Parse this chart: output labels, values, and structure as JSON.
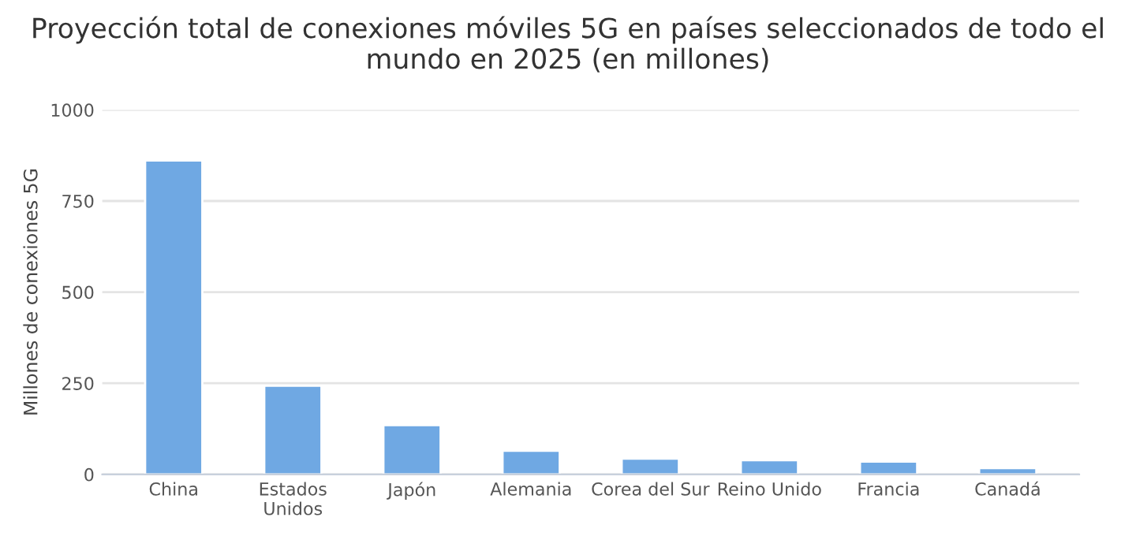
{
  "chart_data": {
    "type": "bar",
    "title": "Proyección total de conexiones móviles 5G en países seleccionados de todo el mundo en 2025 (en millones)",
    "ylabel": "Millones de conexiones 5G",
    "categories": [
      "China",
      "Estados\nUnidos",
      "Japón",
      "Alemania",
      "Corea del Sur",
      "Reino Unido",
      "Francia",
      "Canadá"
    ],
    "values": [
      861,
      243,
      135,
      65,
      43,
      39,
      35,
      17
    ],
    "color": "#6fa8e3",
    "ylim": [
      0,
      1000
    ],
    "yticks": [
      0,
      250,
      500,
      750,
      1000
    ],
    "grid": "y",
    "legend": false
  }
}
